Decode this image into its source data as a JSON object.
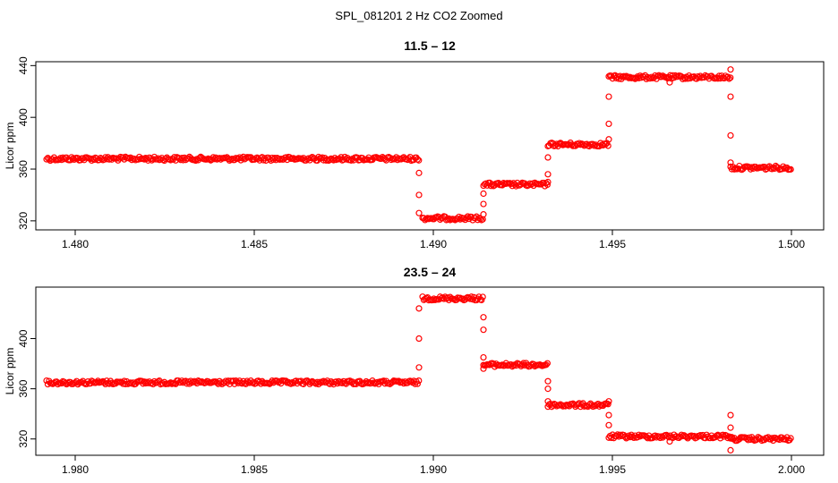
{
  "figure_title": "SPL_081201  2 Hz CO2 Zoomed",
  "colors": {
    "points": "#ff0000",
    "axes": "#000000",
    "background": "#ffffff"
  },
  "chart_data": [
    {
      "type": "scatter",
      "title": "11.5 – 12",
      "xlabel": "",
      "ylabel": "Licor ppm",
      "xlim": [
        1.4789,
        1.5009
      ],
      "ylim": [
        313,
        443
      ],
      "x_ticks": [
        "1.480",
        "1.485",
        "1.490",
        "1.495",
        "1.500"
      ],
      "y_ticks": [
        "320",
        "360",
        "400",
        "440"
      ],
      "marker": "open-circle",
      "grid": false,
      "segments": [
        {
          "x_start": 1.4792,
          "x_end": 1.4896,
          "y": 368
        },
        {
          "x_start": 1.4897,
          "x_end": 1.4914,
          "y": 322
        },
        {
          "x_start": 1.4914,
          "x_end": 1.4932,
          "y": 348
        },
        {
          "x_start": 1.4932,
          "x_end": 1.4949,
          "y": 379
        },
        {
          "x_start": 1.4949,
          "x_end": 1.4983,
          "y": 431
        },
        {
          "x_start": 1.4983,
          "x_end": 1.5,
          "y": 361
        }
      ],
      "transition_points": [
        {
          "x": 1.4896,
          "y": 357
        },
        {
          "x": 1.4896,
          "y": 340
        },
        {
          "x": 1.4896,
          "y": 326
        },
        {
          "x": 1.4914,
          "y": 333
        },
        {
          "x": 1.4914,
          "y": 341
        },
        {
          "x": 1.4914,
          "y": 325
        },
        {
          "x": 1.4932,
          "y": 356
        },
        {
          "x": 1.4932,
          "y": 369
        },
        {
          "x": 1.4932,
          "y": 350
        },
        {
          "x": 1.4949,
          "y": 395
        },
        {
          "x": 1.4949,
          "y": 416
        },
        {
          "x": 1.4949,
          "y": 383
        },
        {
          "x": 1.4966,
          "y": 427
        },
        {
          "x": 1.4983,
          "y": 437
        },
        {
          "x": 1.4983,
          "y": 416
        },
        {
          "x": 1.4983,
          "y": 386
        },
        {
          "x": 1.4983,
          "y": 365
        }
      ]
    },
    {
      "type": "scatter",
      "title": "23.5 – 24",
      "xlabel": "",
      "ylabel": "Licor ppm",
      "xlim": [
        1.9789,
        2.0009
      ],
      "ylim": [
        307,
        441
      ],
      "x_ticks": [
        "1.980",
        "1.985",
        "1.990",
        "1.995",
        "2.000"
      ],
      "y_ticks": [
        "320",
        "360",
        "400"
      ],
      "marker": "open-circle",
      "grid": false,
      "segments": [
        {
          "x_start": 1.9792,
          "x_end": 1.9896,
          "y": 365
        },
        {
          "x_start": 1.9897,
          "x_end": 1.9914,
          "y": 432
        },
        {
          "x_start": 1.9914,
          "x_end": 1.9932,
          "y": 379
        },
        {
          "x_start": 1.9932,
          "x_end": 1.9949,
          "y": 347
        },
        {
          "x_start": 1.9949,
          "x_end": 1.9983,
          "y": 322
        },
        {
          "x_start": 1.9983,
          "x_end": 2.0,
          "y": 320
        }
      ],
      "transition_points": [
        {
          "x": 1.9896,
          "y": 377
        },
        {
          "x": 1.9896,
          "y": 400
        },
        {
          "x": 1.9896,
          "y": 424
        },
        {
          "x": 1.9914,
          "y": 417
        },
        {
          "x": 1.9914,
          "y": 407
        },
        {
          "x": 1.9914,
          "y": 385
        },
        {
          "x": 1.9914,
          "y": 376
        },
        {
          "x": 1.9932,
          "y": 366
        },
        {
          "x": 1.9932,
          "y": 360
        },
        {
          "x": 1.9932,
          "y": 350
        },
        {
          "x": 1.9949,
          "y": 339
        },
        {
          "x": 1.9949,
          "y": 331
        },
        {
          "x": 1.9949,
          "y": 350
        },
        {
          "x": 1.9966,
          "y": 318
        },
        {
          "x": 1.9983,
          "y": 339
        },
        {
          "x": 1.9983,
          "y": 329
        },
        {
          "x": 1.9983,
          "y": 311
        }
      ]
    }
  ]
}
